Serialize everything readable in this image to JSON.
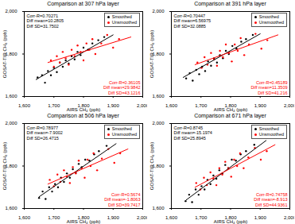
{
  "chart_data": [
    {
      "type": "scatter",
      "title": "Comparison at 307 hPa layer",
      "x_label": "AIRS CH₄ (ppb)",
      "y_label": "GOSAT-TIR CH₄ (ppb)",
      "xlim": [
        1600,
        2000
      ],
      "ylim": [
        1600,
        2000
      ],
      "xticks": [
        1600,
        1700,
        1800,
        1900,
        2000
      ],
      "yticks": [
        1600,
        1800,
        2000
      ],
      "grid": false,
      "legend": "top-right",
      "series": [
        {
          "name": "Smoothed",
          "color": "#000000",
          "marker": "circle",
          "x": [
            1645,
            1660,
            1670,
            1680,
            1690,
            1700,
            1710,
            1720,
            1730,
            1740,
            1750,
            1760,
            1770,
            1780,
            1790,
            1800,
            1815,
            1830,
            1850,
            1870
          ],
          "values": [
            1690,
            1700,
            1665,
            1720,
            1700,
            1735,
            1715,
            1760,
            1740,
            1770,
            1755,
            1790,
            1775,
            1810,
            1795,
            1830,
            1820,
            1850,
            1865,
            1880
          ],
          "fit": {
            "x": [
              1640,
              1900
            ],
            "values": [
              1680,
              1890
            ]
          },
          "annotations": [
            "Corr-R=0.70271",
            "Diff mean=10.2805",
            "Diff SD=31.7502"
          ]
        },
        {
          "name": "Unsmoothed",
          "color": "#ff0000",
          "marker": "circle",
          "x": [
            1690,
            1700,
            1710,
            1720,
            1730,
            1740,
            1750,
            1760,
            1770,
            1780,
            1790,
            1800,
            1810,
            1820,
            1830,
            1840,
            1860,
            1880,
            1900,
            1920
          ],
          "values": [
            1770,
            1740,
            1790,
            1760,
            1810,
            1780,
            1750,
            1820,
            1790,
            1840,
            1810,
            1770,
            1850,
            1820,
            1870,
            1800,
            1850,
            1890,
            1830,
            1870
          ],
          "fit": {
            "x": [
              1680,
              1960
            ],
            "values": [
              1760,
              1880
            ]
          },
          "annotations": [
            "Corr-R=0.36105",
            "Diff mean=29.9842",
            "Diff SD=43.1216"
          ]
        }
      ]
    },
    {
      "type": "scatter",
      "title": "Comparison at 391 hPa layer",
      "x_label": "AIRS CH₄ (ppb)",
      "y_label": "GOSAT-TIR CH₄ (ppb)",
      "xlim": [
        1600,
        2000
      ],
      "ylim": [
        1600,
        2000
      ],
      "xticks": [
        1600,
        1700,
        1800,
        1900,
        2000
      ],
      "yticks": [
        1600,
        1800,
        2000
      ],
      "grid": false,
      "legend": "top-right",
      "series": [
        {
          "name": "Smoothed",
          "color": "#000000",
          "marker": "circle",
          "x": [
            1650,
            1662,
            1672,
            1684,
            1694,
            1704,
            1714,
            1724,
            1734,
            1744,
            1754,
            1764,
            1774,
            1784,
            1794,
            1806,
            1820,
            1836,
            1852,
            1875
          ],
          "values": [
            1685,
            1710,
            1675,
            1725,
            1705,
            1740,
            1720,
            1765,
            1745,
            1780,
            1760,
            1795,
            1780,
            1815,
            1800,
            1838,
            1825,
            1858,
            1870,
            1890
          ],
          "fit": {
            "x": [
              1640,
              1900
            ],
            "values": [
              1690,
              1895
            ]
          },
          "annotations": [
            "Corr-R=0.70447",
            "Diff mean=6.56975",
            "Diff SD=32.0885"
          ]
        },
        {
          "name": "Unsmoothed",
          "color": "#ff0000",
          "marker": "circle",
          "x": [
            1688,
            1702,
            1712,
            1722,
            1734,
            1744,
            1754,
            1764,
            1774,
            1784,
            1794,
            1804,
            1814,
            1824,
            1834,
            1846,
            1862,
            1884,
            1904,
            1924
          ],
          "values": [
            1760,
            1735,
            1785,
            1750,
            1805,
            1775,
            1745,
            1815,
            1785,
            1845,
            1805,
            1765,
            1845,
            1815,
            1875,
            1795,
            1845,
            1895,
            1825,
            1865
          ],
          "fit": {
            "x": [
              1680,
              1960
            ],
            "values": [
              1750,
              1890
            ]
          },
          "annotations": [
            "Corr-R=0.45189",
            "Diff mean=11.3509",
            "Diff SD=41.216"
          ]
        }
      ]
    },
    {
      "type": "scatter",
      "title": "Comparison at 506 hPa layer",
      "x_label": "AIRS CH₄ (ppb)",
      "y_label": "GOSAT-TIR CH₄ (ppb)",
      "xlim": [
        1600,
        2000
      ],
      "ylim": [
        1600,
        2000
      ],
      "xticks": [
        1600,
        1700,
        1800,
        1900,
        2000
      ],
      "yticks": [
        1600,
        1800,
        2000
      ],
      "grid": false,
      "legend": "top-right",
      "series": [
        {
          "name": "Smoothed",
          "color": "#000000",
          "marker": "circle",
          "x": [
            1650,
            1662,
            1672,
            1684,
            1694,
            1704,
            1714,
            1724,
            1734,
            1744,
            1754,
            1764,
            1774,
            1784,
            1794,
            1806,
            1820,
            1836,
            1852,
            1878
          ],
          "values": [
            1650,
            1680,
            1645,
            1700,
            1680,
            1715,
            1700,
            1745,
            1725,
            1765,
            1745,
            1785,
            1770,
            1810,
            1795,
            1830,
            1825,
            1855,
            1870,
            1895
          ],
          "fit": {
            "x": [
              1650,
              1910
            ],
            "values": [
              1655,
              1905
            ]
          },
          "annotations": [
            "Corr-R=0.78977",
            "Diff mean=-7.9002",
            "Diff SD=26.4715"
          ]
        },
        {
          "name": "Unsmoothed",
          "color": "#ff0000",
          "marker": "circle",
          "x": [
            1686,
            1700,
            1712,
            1722,
            1734,
            1744,
            1754,
            1764,
            1774,
            1784,
            1794,
            1804,
            1814,
            1824,
            1834,
            1846,
            1862,
            1884,
            1904,
            1924
          ],
          "values": [
            1735,
            1705,
            1760,
            1725,
            1780,
            1750,
            1720,
            1795,
            1765,
            1825,
            1790,
            1745,
            1830,
            1800,
            1860,
            1780,
            1835,
            1880,
            1815,
            1860
          ],
          "fit": {
            "x": [
              1680,
              1950
            ],
            "values": [
              1715,
              1880
            ]
          },
          "annotations": [
            "Corr-R=0.5674",
            "Diff mean=-1.8063",
            "Diff SD=39.7417"
          ]
        }
      ]
    },
    {
      "type": "scatter",
      "title": "Comparison at 671 hPa layer",
      "x_label": "AIRS CH₄ (ppb)",
      "y_label": "GOSAT-TIR CH₄ (ppb)",
      "xlim": [
        1600,
        2000
      ],
      "ylim": [
        1600,
        2000
      ],
      "xticks": [
        1600,
        1700,
        1800,
        1900,
        2000
      ],
      "yticks": [
        1600,
        1800,
        2000
      ],
      "grid": false,
      "legend": "top-right",
      "series": [
        {
          "name": "Smoothed",
          "color": "#000000",
          "marker": "circle",
          "x": [
            1648,
            1660,
            1670,
            1682,
            1692,
            1702,
            1712,
            1722,
            1732,
            1742,
            1752,
            1762,
            1772,
            1782,
            1792,
            1804,
            1818,
            1834,
            1852,
            1880
          ],
          "values": [
            1635,
            1665,
            1630,
            1690,
            1665,
            1705,
            1690,
            1735,
            1715,
            1755,
            1740,
            1780,
            1765,
            1805,
            1790,
            1830,
            1825,
            1855,
            1870,
            1900
          ],
          "fit": {
            "x": [
              1650,
              1920
            ],
            "values": [
              1640,
              1920
            ]
          },
          "annotations": [
            "Corr-R=0.8745",
            "Diff mean=-15.1974",
            "Diff SD=25.8945"
          ]
        },
        {
          "name": "Unsmoothed",
          "color": "#ff0000",
          "marker": "circle",
          "x": [
            1684,
            1698,
            1710,
            1720,
            1732,
            1742,
            1752,
            1762,
            1772,
            1782,
            1792,
            1802,
            1812,
            1822,
            1832,
            1844,
            1860,
            1882,
            1902,
            1922
          ],
          "values": [
            1720,
            1690,
            1745,
            1710,
            1770,
            1740,
            1710,
            1790,
            1760,
            1820,
            1790,
            1750,
            1830,
            1800,
            1860,
            1790,
            1840,
            1885,
            1830,
            1870
          ],
          "fit": {
            "x": [
              1680,
              1950
            ],
            "values": [
              1700,
              1900
            ]
          },
          "annotations": [
            "Corr-R=0.74758",
            "Diff mean=-8.913",
            "Diff SD=44.9361"
          ]
        }
      ]
    }
  ]
}
